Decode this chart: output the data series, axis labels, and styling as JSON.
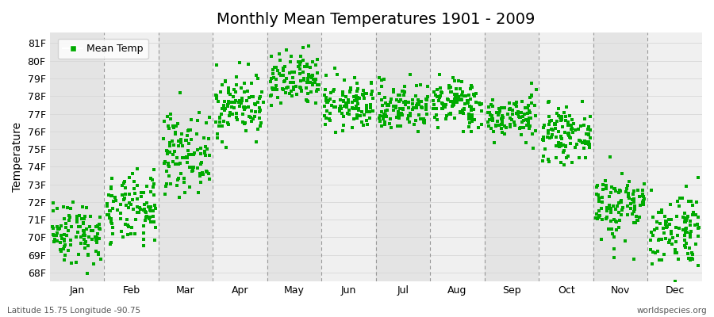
{
  "title": "Monthly Mean Temperatures 1901 - 2009",
  "ylabel": "Temperature",
  "xlabel_months": [
    "Jan",
    "Feb",
    "Mar",
    "Apr",
    "May",
    "Jun",
    "Jul",
    "Aug",
    "Sep",
    "Oct",
    "Nov",
    "Dec"
  ],
  "ylim": [
    67.5,
    81.6
  ],
  "yticks": [
    68,
    69,
    70,
    71,
    72,
    73,
    74,
    75,
    76,
    77,
    78,
    79,
    80,
    81
  ],
  "dot_color": "#00AA00",
  "bg_outer": "#ffffff",
  "strip_dark": "#E4E4E4",
  "strip_light": "#F0F0F0",
  "grid_color": "#D8D8D8",
  "dash_color": "#999999",
  "legend_label": "Mean Temp",
  "footer_left": "Latitude 15.75 Longitude -90.75",
  "footer_right": "worldspecies.org",
  "monthly_means": [
    70.3,
    71.5,
    74.8,
    77.5,
    78.8,
    77.5,
    77.4,
    77.6,
    76.8,
    75.8,
    71.8,
    70.5
  ],
  "monthly_stds": [
    0.9,
    1.0,
    1.1,
    0.9,
    0.8,
    0.7,
    0.7,
    0.7,
    0.6,
    0.7,
    1.0,
    1.1
  ],
  "n_years": 109,
  "seed": 42,
  "marker_size": 5
}
